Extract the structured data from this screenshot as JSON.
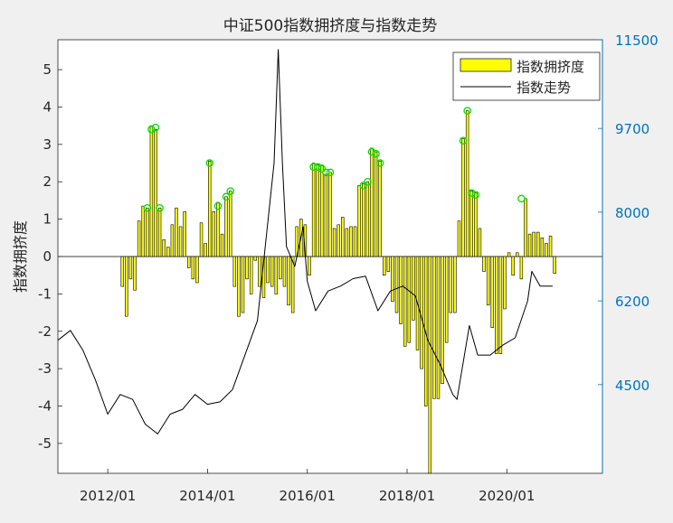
{
  "chart_data": {
    "type": "bar+line",
    "title": "中证500指数拥挤度与指数走势",
    "ylabel_left": "指数拥挤度",
    "ylabel_right": "",
    "left_axis": {
      "ylim": [
        -5.8,
        5.8
      ],
      "ticks": [
        -5,
        -4,
        -3,
        -2,
        -1,
        0,
        1,
        2,
        3,
        4,
        5
      ],
      "tick_labels": [
        "-5",
        "-4",
        "-3",
        "-2",
        "-1",
        "0",
        "1",
        "2",
        "3",
        "4",
        "5"
      ]
    },
    "right_axis": {
      "ylim": [
        2700,
        11500
      ],
      "ticks": [
        4500,
        6200,
        8000,
        9700,
        11500
      ],
      "tick_labels": [
        "4500",
        "6200",
        "8000",
        "9700",
        "11500"
      ]
    },
    "x_axis": {
      "range": [
        "2011-01",
        "2021-12"
      ],
      "ticks": [
        "2012-01",
        "2014-01",
        "2016-01",
        "2018-01",
        "2020-01"
      ],
      "tick_labels": [
        "2012/01",
        "2014/01",
        "2016/01",
        "2018/01",
        "2020/01"
      ]
    },
    "legend": {
      "position": "top-right",
      "entries": [
        {
          "label": "指数拥挤度",
          "kind": "bar"
        },
        {
          "label": "指数走势",
          "kind": "line"
        }
      ]
    },
    "series": [
      {
        "name": "指数拥挤度",
        "kind": "bar",
        "axis": "left",
        "color": "#ffff00",
        "edge_color": "#000000",
        "x": [
          "2012-04",
          "2012-05",
          "2012-06",
          "2012-07",
          "2012-08",
          "2012-09",
          "2012-10",
          "2012-11",
          "2012-12",
          "2013-01",
          "2013-02",
          "2013-03",
          "2013-04",
          "2013-05",
          "2013-06",
          "2013-07",
          "2013-08",
          "2013-09",
          "2013-10",
          "2013-11",
          "2013-12",
          "2014-01",
          "2014-02",
          "2014-03",
          "2014-04",
          "2014-05",
          "2014-06",
          "2014-07",
          "2014-08",
          "2014-09",
          "2014-10",
          "2014-11",
          "2014-12",
          "2015-01",
          "2015-02",
          "2015-03",
          "2015-04",
          "2015-05",
          "2015-06",
          "2015-07",
          "2015-08",
          "2015-09",
          "2015-10",
          "2015-11",
          "2015-12",
          "2016-01",
          "2016-02",
          "2016-03",
          "2016-04",
          "2016-05",
          "2016-06",
          "2016-07",
          "2016-08",
          "2016-09",
          "2016-10",
          "2016-11",
          "2016-12",
          "2017-01",
          "2017-02",
          "2017-03",
          "2017-04",
          "2017-05",
          "2017-06",
          "2017-07",
          "2017-08",
          "2017-09",
          "2017-10",
          "2017-11",
          "2017-12",
          "2018-01",
          "2018-02",
          "2018-03",
          "2018-04",
          "2018-05",
          "2018-06",
          "2018-07",
          "2018-08",
          "2018-09",
          "2018-10",
          "2018-11",
          "2018-12",
          "2019-01",
          "2019-02",
          "2019-03",
          "2019-04",
          "2019-05",
          "2019-06",
          "2019-07",
          "2019-08",
          "2019-09",
          "2019-10",
          "2019-11",
          "2019-12",
          "2020-01",
          "2020-02",
          "2020-03",
          "2020-04",
          "2020-05",
          "2020-06",
          "2020-07",
          "2020-08",
          "2020-09",
          "2020-10",
          "2020-11",
          "2020-12"
        ],
        "values": [
          -0.8,
          -1.6,
          -0.6,
          -0.9,
          0.95,
          1.35,
          1.3,
          3.5,
          3.4,
          1.3,
          0.45,
          0.25,
          0.85,
          1.3,
          0.8,
          1.2,
          -0.3,
          -0.6,
          -0.7,
          0.9,
          0.35,
          2.55,
          1.2,
          1.45,
          0.6,
          1.6,
          1.75,
          -0.8,
          -1.6,
          -1.5,
          -0.6,
          -1.0,
          -0.1,
          -0.8,
          -1.1,
          -0.7,
          -0.8,
          -1.0,
          -0.6,
          -0.8,
          -1.3,
          -1.5,
          0.8,
          1.0,
          0.85,
          -0.5,
          2.5,
          2.45,
          2.45,
          2.2,
          2.25,
          0.75,
          0.85,
          1.05,
          0.75,
          0.8,
          0.8,
          1.9,
          1.95,
          2.0,
          2.9,
          2.8,
          2.55,
          -0.5,
          -0.4,
          -1.2,
          -1.5,
          -1.8,
          -2.4,
          -2.3,
          -1.7,
          -2.5,
          -3.0,
          -4.0,
          -5.8,
          -3.8,
          -3.8,
          -3.4,
          -2.3,
          -1.5,
          -1.5,
          0.95,
          3.15,
          3.9,
          1.75,
          1.7,
          0.75,
          -0.4,
          -1.3,
          -1.9,
          -2.6,
          -2.6,
          -1.4,
          0.1,
          -0.5,
          0.1,
          -0.6,
          1.55,
          0.6,
          0.65,
          0.65,
          0.5,
          0.35,
          0.55,
          -0.45
        ]
      },
      {
        "name": "指数走势",
        "kind": "line",
        "axis": "right",
        "color": "#000000",
        "x": [
          "2011-01",
          "2011-04",
          "2011-07",
          "2011-10",
          "2012-01",
          "2012-04",
          "2012-07",
          "2012-10",
          "2013-01",
          "2013-04",
          "2013-07",
          "2013-10",
          "2014-01",
          "2014-04",
          "2014-07",
          "2014-10",
          "2015-01",
          "2015-03",
          "2015-05",
          "2015-06",
          "2015-07",
          "2015-08",
          "2015-10",
          "2015-12",
          "2016-01",
          "2016-03",
          "2016-06",
          "2016-09",
          "2016-12",
          "2017-03",
          "2017-06",
          "2017-09",
          "2017-12",
          "2018-03",
          "2018-06",
          "2018-09",
          "2018-12",
          "2019-01",
          "2019-04",
          "2019-06",
          "2019-09",
          "2019-12",
          "2020-03",
          "2020-06",
          "2020-07",
          "2020-09",
          "2020-12"
        ],
        "values": [
          5400,
          5600,
          5200,
          4600,
          3900,
          4300,
          4200,
          3700,
          3500,
          3900,
          4000,
          4300,
          4100,
          4150,
          4400,
          5100,
          5800,
          7400,
          9000,
          11300,
          9000,
          7300,
          6900,
          7700,
          6600,
          6000,
          6400,
          6500,
          6650,
          6700,
          6000,
          6400,
          6500,
          6300,
          5400,
          4900,
          4300,
          4200,
          5700,
          5100,
          5100,
          5300,
          5450,
          6200,
          6800,
          6500,
          6500
        ]
      }
    ],
    "markers": {
      "color": "#00dd00",
      "x": [
        "2012-10",
        "2012-11",
        "2012-12",
        "2013-01",
        "2014-01",
        "2014-03",
        "2014-05",
        "2014-06",
        "2016-02",
        "2016-03",
        "2016-04",
        "2016-05",
        "2016-06",
        "2017-02",
        "2017-03",
        "2017-04",
        "2017-05",
        "2017-06",
        "2019-02",
        "2019-03",
        "2019-04",
        "2019-05",
        "2020-04"
      ],
      "values": [
        1.3,
        3.4,
        3.45,
        1.3,
        2.5,
        1.35,
        1.6,
        1.75,
        2.4,
        2.4,
        2.35,
        2.25,
        2.25,
        1.9,
        2.0,
        2.8,
        2.75,
        2.5,
        3.1,
        3.9,
        1.7,
        1.65,
        1.55
      ]
    },
    "grid": false
  }
}
